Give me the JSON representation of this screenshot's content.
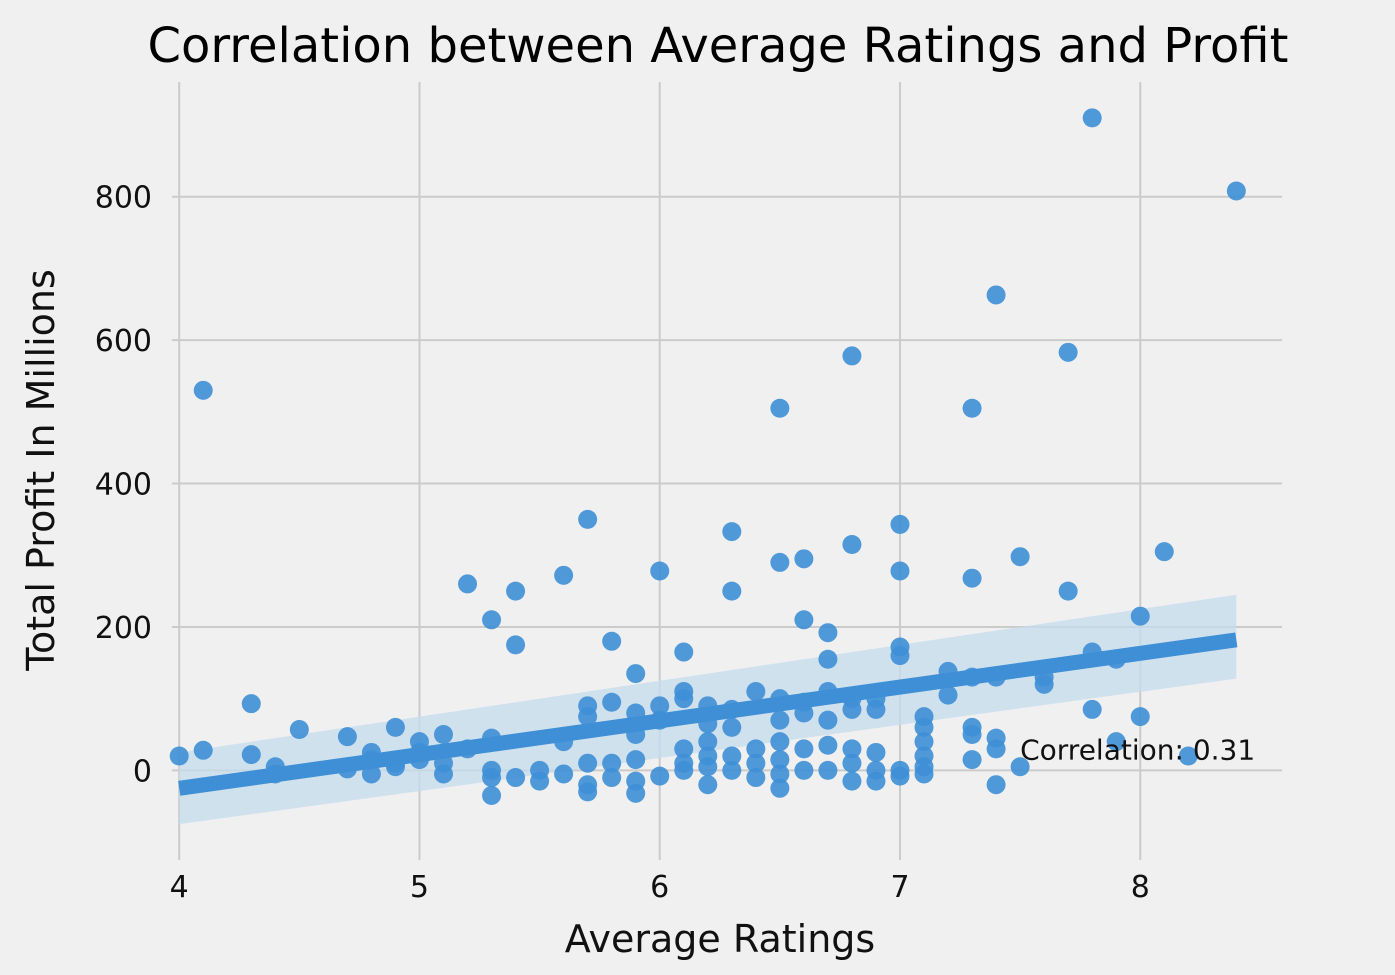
{
  "chart_data": {
    "type": "scatter",
    "title": "Correlation between Average Ratings and Profit",
    "xlabel": "Average Ratings",
    "ylabel": "Total Profit In Millions",
    "xlim": [
      3.97,
      8.59
    ],
    "ylim": [
      -125,
      960
    ],
    "grid": true,
    "xticks": [
      4,
      5,
      6,
      7,
      8
    ],
    "yticks": [
      0,
      200,
      400,
      600,
      800
    ],
    "annotation": {
      "text": "Correlation: 0.31",
      "x": 7.5,
      "y": 15
    },
    "regression": {
      "x": [
        4.0,
        8.4
      ],
      "y": [
        -25,
        182
      ],
      "ci_lower": [
        -75,
        128
      ],
      "ci_upper": [
        25,
        245
      ]
    },
    "colors": {
      "points": "#3e8fd6",
      "line": "#3e8fd6",
      "band": "#c6dcee"
    },
    "series": [
      {
        "points": [
          [
            4.0,
            20
          ],
          [
            4.1,
            28
          ],
          [
            4.1,
            530
          ],
          [
            4.3,
            22
          ],
          [
            4.3,
            93
          ],
          [
            4.4,
            5
          ],
          [
            4.4,
            -5
          ],
          [
            4.5,
            57
          ],
          [
            4.7,
            47
          ],
          [
            4.7,
            2
          ],
          [
            4.8,
            25
          ],
          [
            4.8,
            15
          ],
          [
            4.8,
            -5
          ],
          [
            4.9,
            60
          ],
          [
            4.9,
            10
          ],
          [
            4.9,
            5
          ],
          [
            5.0,
            40
          ],
          [
            5.0,
            15
          ],
          [
            5.0,
            25
          ],
          [
            5.1,
            50
          ],
          [
            5.1,
            10
          ],
          [
            5.1,
            -5
          ],
          [
            5.2,
            30
          ],
          [
            5.2,
            260
          ],
          [
            5.3,
            210
          ],
          [
            5.3,
            45
          ],
          [
            5.3,
            0
          ],
          [
            5.3,
            -10
          ],
          [
            5.3,
            -35
          ],
          [
            5.4,
            250
          ],
          [
            5.4,
            175
          ],
          [
            5.4,
            -10
          ],
          [
            5.5,
            0
          ],
          [
            5.5,
            -15
          ],
          [
            5.6,
            272
          ],
          [
            5.6,
            40
          ],
          [
            5.6,
            -5
          ],
          [
            5.7,
            350
          ],
          [
            5.7,
            90
          ],
          [
            5.7,
            75
          ],
          [
            5.7,
            10
          ],
          [
            5.7,
            -20
          ],
          [
            5.7,
            -30
          ],
          [
            5.8,
            180
          ],
          [
            5.8,
            95
          ],
          [
            5.8,
            10
          ],
          [
            5.8,
            -10
          ],
          [
            5.9,
            135
          ],
          [
            5.9,
            80
          ],
          [
            5.9,
            50
          ],
          [
            5.9,
            15
          ],
          [
            5.9,
            -15
          ],
          [
            5.9,
            -32
          ],
          [
            6.0,
            278
          ],
          [
            6.0,
            90
          ],
          [
            6.0,
            70
          ],
          [
            6.0,
            -8
          ],
          [
            6.1,
            165
          ],
          [
            6.1,
            110
          ],
          [
            6.1,
            100
          ],
          [
            6.1,
            30
          ],
          [
            6.1,
            10
          ],
          [
            6.1,
            0
          ],
          [
            6.2,
            90
          ],
          [
            6.2,
            65
          ],
          [
            6.2,
            40
          ],
          [
            6.2,
            20
          ],
          [
            6.2,
            5
          ],
          [
            6.2,
            -20
          ],
          [
            6.3,
            333
          ],
          [
            6.3,
            250
          ],
          [
            6.3,
            85
          ],
          [
            6.3,
            60
          ],
          [
            6.3,
            20
          ],
          [
            6.3,
            0
          ],
          [
            6.4,
            110
          ],
          [
            6.4,
            30
          ],
          [
            6.4,
            10
          ],
          [
            6.4,
            -10
          ],
          [
            6.5,
            505
          ],
          [
            6.5,
            290
          ],
          [
            6.5,
            100
          ],
          [
            6.5,
            70
          ],
          [
            6.5,
            40
          ],
          [
            6.5,
            15
          ],
          [
            6.5,
            -5
          ],
          [
            6.5,
            -25
          ],
          [
            6.6,
            295
          ],
          [
            6.6,
            210
          ],
          [
            6.6,
            95
          ],
          [
            6.6,
            80
          ],
          [
            6.6,
            30
          ],
          [
            6.6,
            0
          ],
          [
            6.7,
            192
          ],
          [
            6.7,
            155
          ],
          [
            6.7,
            110
          ],
          [
            6.7,
            70
          ],
          [
            6.7,
            35
          ],
          [
            6.7,
            0
          ],
          [
            6.8,
            578
          ],
          [
            6.8,
            315
          ],
          [
            6.8,
            100
          ],
          [
            6.8,
            85
          ],
          [
            6.8,
            30
          ],
          [
            6.8,
            10
          ],
          [
            6.8,
            -15
          ],
          [
            6.9,
            100
          ],
          [
            6.9,
            85
          ],
          [
            6.9,
            25
          ],
          [
            6.9,
            0
          ],
          [
            6.9,
            -15
          ],
          [
            7.0,
            343
          ],
          [
            7.0,
            278
          ],
          [
            7.0,
            172
          ],
          [
            7.0,
            160
          ],
          [
            7.0,
            0
          ],
          [
            7.0,
            -8
          ],
          [
            7.1,
            75
          ],
          [
            7.1,
            60
          ],
          [
            7.1,
            40
          ],
          [
            7.1,
            20
          ],
          [
            7.1,
            5
          ],
          [
            7.1,
            -5
          ],
          [
            7.2,
            138
          ],
          [
            7.2,
            105
          ],
          [
            7.3,
            505
          ],
          [
            7.3,
            268
          ],
          [
            7.3,
            130
          ],
          [
            7.3,
            60
          ],
          [
            7.3,
            50
          ],
          [
            7.3,
            15
          ],
          [
            7.4,
            663
          ],
          [
            7.4,
            130
          ],
          [
            7.4,
            45
          ],
          [
            7.4,
            30
          ],
          [
            7.4,
            -20
          ],
          [
            7.5,
            298
          ],
          [
            7.5,
            5
          ],
          [
            7.6,
            130
          ],
          [
            7.6,
            120
          ],
          [
            7.7,
            583
          ],
          [
            7.7,
            250
          ],
          [
            7.8,
            910
          ],
          [
            7.8,
            165
          ],
          [
            7.8,
            85
          ],
          [
            7.9,
            155
          ],
          [
            7.9,
            40
          ],
          [
            8.0,
            215
          ],
          [
            8.0,
            75
          ],
          [
            8.1,
            305
          ],
          [
            8.2,
            20
          ],
          [
            8.4,
            808
          ]
        ]
      }
    ]
  }
}
